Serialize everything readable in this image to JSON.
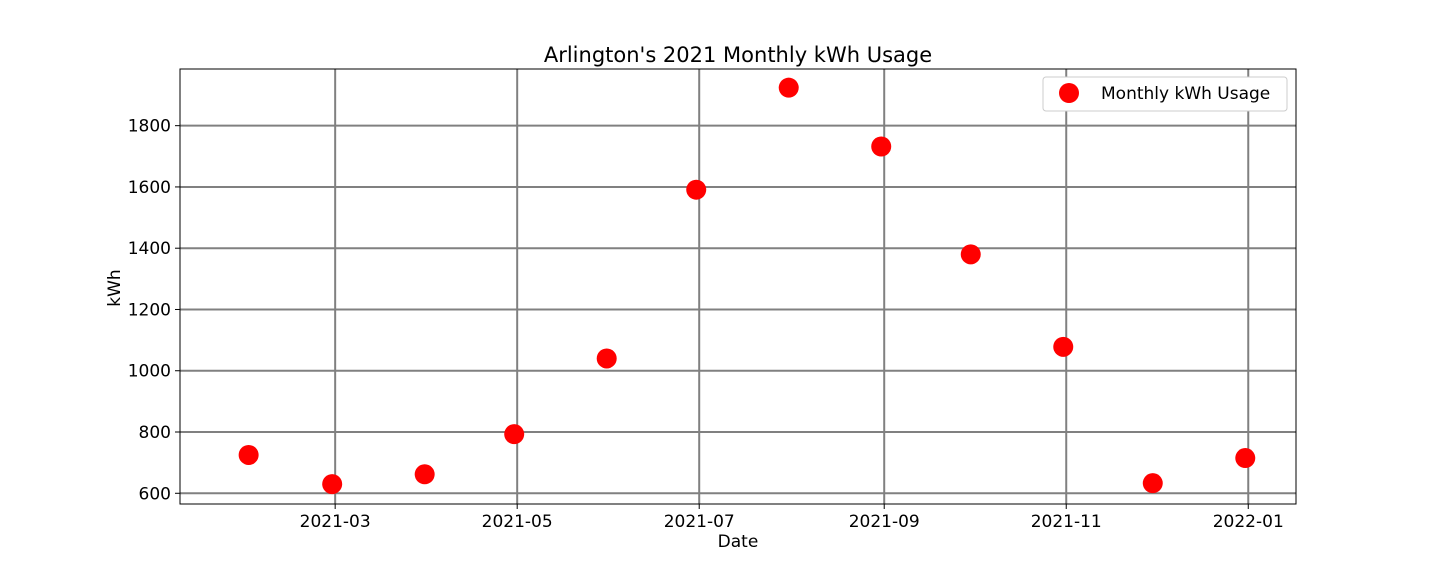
{
  "chart_data": {
    "type": "scatter",
    "title": "Arlington's 2021 Monthly kWh Usage",
    "xlabel": "Date",
    "ylabel": "kWh",
    "x_type": "date",
    "xlim": [
      "2021-01-08",
      "2022-01-17"
    ],
    "ylim": [
      565,
      1985
    ],
    "xticks": [
      "2021-03-01",
      "2021-05-01",
      "2021-07-01",
      "2021-09-01",
      "2021-11-01",
      "2022-01-01"
    ],
    "xtick_labels": [
      "2021-03",
      "2021-05",
      "2021-07",
      "2021-09",
      "2021-11",
      "2022-01"
    ],
    "yticks": [
      600,
      800,
      1000,
      1200,
      1400,
      1600,
      1800
    ],
    "ytick_labels": [
      "600",
      "800",
      "1000",
      "1200",
      "1400",
      "1600",
      "1800"
    ],
    "grid": true,
    "legend_position": "top-right",
    "series": [
      {
        "name": "Monthly kWh Usage",
        "color": "#ff0000",
        "marker": "circle",
        "x": [
          "2021-01-31",
          "2021-02-28",
          "2021-03-31",
          "2021-04-30",
          "2021-05-31",
          "2021-06-30",
          "2021-07-31",
          "2021-08-31",
          "2021-09-30",
          "2021-10-31",
          "2021-11-30",
          "2021-12-31"
        ],
        "y": [
          725,
          630,
          662,
          793,
          1040,
          1591,
          1924,
          1732,
          1380,
          1078,
          633,
          715
        ]
      }
    ]
  }
}
